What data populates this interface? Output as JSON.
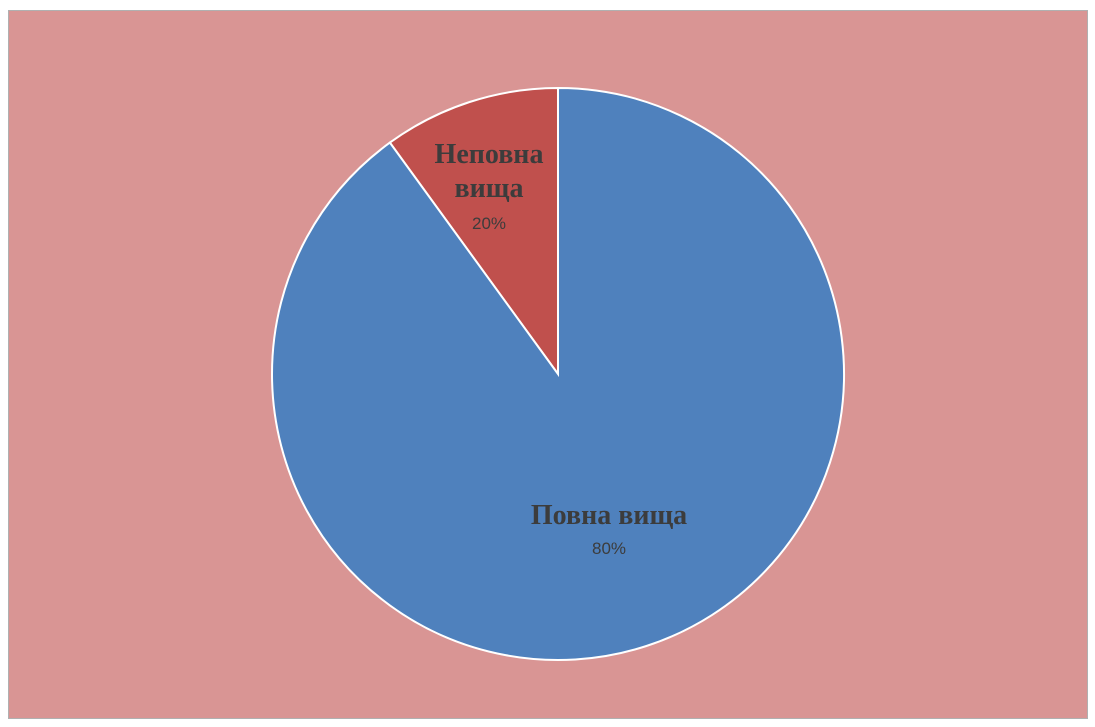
{
  "chart_data": {
    "type": "pie",
    "title": "",
    "background_color": "#d99594",
    "slices": [
      {
        "label_lines": [
          "Неповна",
          "вища"
        ],
        "value": 20,
        "percent_label": "20%",
        "color": "#c0504d"
      },
      {
        "label_lines": [
          "Повна вища"
        ],
        "value": 80,
        "percent_label": "80%",
        "color": "#4f81bd"
      }
    ]
  }
}
